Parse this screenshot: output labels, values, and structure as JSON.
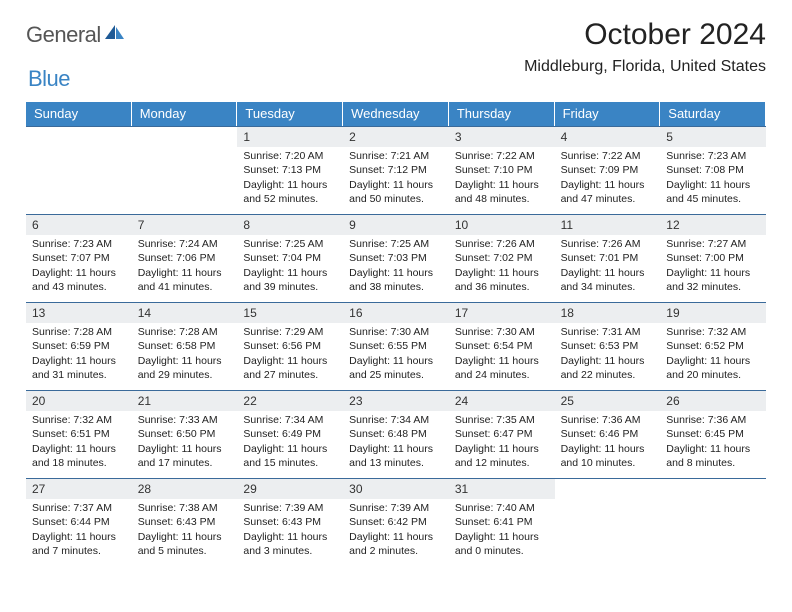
{
  "logo": {
    "general": "General",
    "blue": "Blue"
  },
  "title": "October 2024",
  "location": "Middleburg, Florida, United States",
  "dow": [
    "Sunday",
    "Monday",
    "Tuesday",
    "Wednesday",
    "Thursday",
    "Friday",
    "Saturday"
  ],
  "colors": {
    "header_bg": "#3a84c4",
    "border": "#3a6a9a",
    "daynum_bg": "#eceef0"
  },
  "days": [
    {
      "n": "",
      "empty": true
    },
    {
      "n": "",
      "empty": true
    },
    {
      "n": "1",
      "sr": "Sunrise: 7:20 AM",
      "ss": "Sunset: 7:13 PM",
      "dl": "Daylight: 11 hours and 52 minutes."
    },
    {
      "n": "2",
      "sr": "Sunrise: 7:21 AM",
      "ss": "Sunset: 7:12 PM",
      "dl": "Daylight: 11 hours and 50 minutes."
    },
    {
      "n": "3",
      "sr": "Sunrise: 7:22 AM",
      "ss": "Sunset: 7:10 PM",
      "dl": "Daylight: 11 hours and 48 minutes."
    },
    {
      "n": "4",
      "sr": "Sunrise: 7:22 AM",
      "ss": "Sunset: 7:09 PM",
      "dl": "Daylight: 11 hours and 47 minutes."
    },
    {
      "n": "5",
      "sr": "Sunrise: 7:23 AM",
      "ss": "Sunset: 7:08 PM",
      "dl": "Daylight: 11 hours and 45 minutes."
    },
    {
      "n": "6",
      "sr": "Sunrise: 7:23 AM",
      "ss": "Sunset: 7:07 PM",
      "dl": "Daylight: 11 hours and 43 minutes."
    },
    {
      "n": "7",
      "sr": "Sunrise: 7:24 AM",
      "ss": "Sunset: 7:06 PM",
      "dl": "Daylight: 11 hours and 41 minutes."
    },
    {
      "n": "8",
      "sr": "Sunrise: 7:25 AM",
      "ss": "Sunset: 7:04 PM",
      "dl": "Daylight: 11 hours and 39 minutes."
    },
    {
      "n": "9",
      "sr": "Sunrise: 7:25 AM",
      "ss": "Sunset: 7:03 PM",
      "dl": "Daylight: 11 hours and 38 minutes."
    },
    {
      "n": "10",
      "sr": "Sunrise: 7:26 AM",
      "ss": "Sunset: 7:02 PM",
      "dl": "Daylight: 11 hours and 36 minutes."
    },
    {
      "n": "11",
      "sr": "Sunrise: 7:26 AM",
      "ss": "Sunset: 7:01 PM",
      "dl": "Daylight: 11 hours and 34 minutes."
    },
    {
      "n": "12",
      "sr": "Sunrise: 7:27 AM",
      "ss": "Sunset: 7:00 PM",
      "dl": "Daylight: 11 hours and 32 minutes."
    },
    {
      "n": "13",
      "sr": "Sunrise: 7:28 AM",
      "ss": "Sunset: 6:59 PM",
      "dl": "Daylight: 11 hours and 31 minutes."
    },
    {
      "n": "14",
      "sr": "Sunrise: 7:28 AM",
      "ss": "Sunset: 6:58 PM",
      "dl": "Daylight: 11 hours and 29 minutes."
    },
    {
      "n": "15",
      "sr": "Sunrise: 7:29 AM",
      "ss": "Sunset: 6:56 PM",
      "dl": "Daylight: 11 hours and 27 minutes."
    },
    {
      "n": "16",
      "sr": "Sunrise: 7:30 AM",
      "ss": "Sunset: 6:55 PM",
      "dl": "Daylight: 11 hours and 25 minutes."
    },
    {
      "n": "17",
      "sr": "Sunrise: 7:30 AM",
      "ss": "Sunset: 6:54 PM",
      "dl": "Daylight: 11 hours and 24 minutes."
    },
    {
      "n": "18",
      "sr": "Sunrise: 7:31 AM",
      "ss": "Sunset: 6:53 PM",
      "dl": "Daylight: 11 hours and 22 minutes."
    },
    {
      "n": "19",
      "sr": "Sunrise: 7:32 AM",
      "ss": "Sunset: 6:52 PM",
      "dl": "Daylight: 11 hours and 20 minutes."
    },
    {
      "n": "20",
      "sr": "Sunrise: 7:32 AM",
      "ss": "Sunset: 6:51 PM",
      "dl": "Daylight: 11 hours and 18 minutes."
    },
    {
      "n": "21",
      "sr": "Sunrise: 7:33 AM",
      "ss": "Sunset: 6:50 PM",
      "dl": "Daylight: 11 hours and 17 minutes."
    },
    {
      "n": "22",
      "sr": "Sunrise: 7:34 AM",
      "ss": "Sunset: 6:49 PM",
      "dl": "Daylight: 11 hours and 15 minutes."
    },
    {
      "n": "23",
      "sr": "Sunrise: 7:34 AM",
      "ss": "Sunset: 6:48 PM",
      "dl": "Daylight: 11 hours and 13 minutes."
    },
    {
      "n": "24",
      "sr": "Sunrise: 7:35 AM",
      "ss": "Sunset: 6:47 PM",
      "dl": "Daylight: 11 hours and 12 minutes."
    },
    {
      "n": "25",
      "sr": "Sunrise: 7:36 AM",
      "ss": "Sunset: 6:46 PM",
      "dl": "Daylight: 11 hours and 10 minutes."
    },
    {
      "n": "26",
      "sr": "Sunrise: 7:36 AM",
      "ss": "Sunset: 6:45 PM",
      "dl": "Daylight: 11 hours and 8 minutes."
    },
    {
      "n": "27",
      "sr": "Sunrise: 7:37 AM",
      "ss": "Sunset: 6:44 PM",
      "dl": "Daylight: 11 hours and 7 minutes."
    },
    {
      "n": "28",
      "sr": "Sunrise: 7:38 AM",
      "ss": "Sunset: 6:43 PM",
      "dl": "Daylight: 11 hours and 5 minutes."
    },
    {
      "n": "29",
      "sr": "Sunrise: 7:39 AM",
      "ss": "Sunset: 6:43 PM",
      "dl": "Daylight: 11 hours and 3 minutes."
    },
    {
      "n": "30",
      "sr": "Sunrise: 7:39 AM",
      "ss": "Sunset: 6:42 PM",
      "dl": "Daylight: 11 hours and 2 minutes."
    },
    {
      "n": "31",
      "sr": "Sunrise: 7:40 AM",
      "ss": "Sunset: 6:41 PM",
      "dl": "Daylight: 11 hours and 0 minutes."
    },
    {
      "n": "",
      "empty": true
    },
    {
      "n": "",
      "empty": true
    }
  ]
}
